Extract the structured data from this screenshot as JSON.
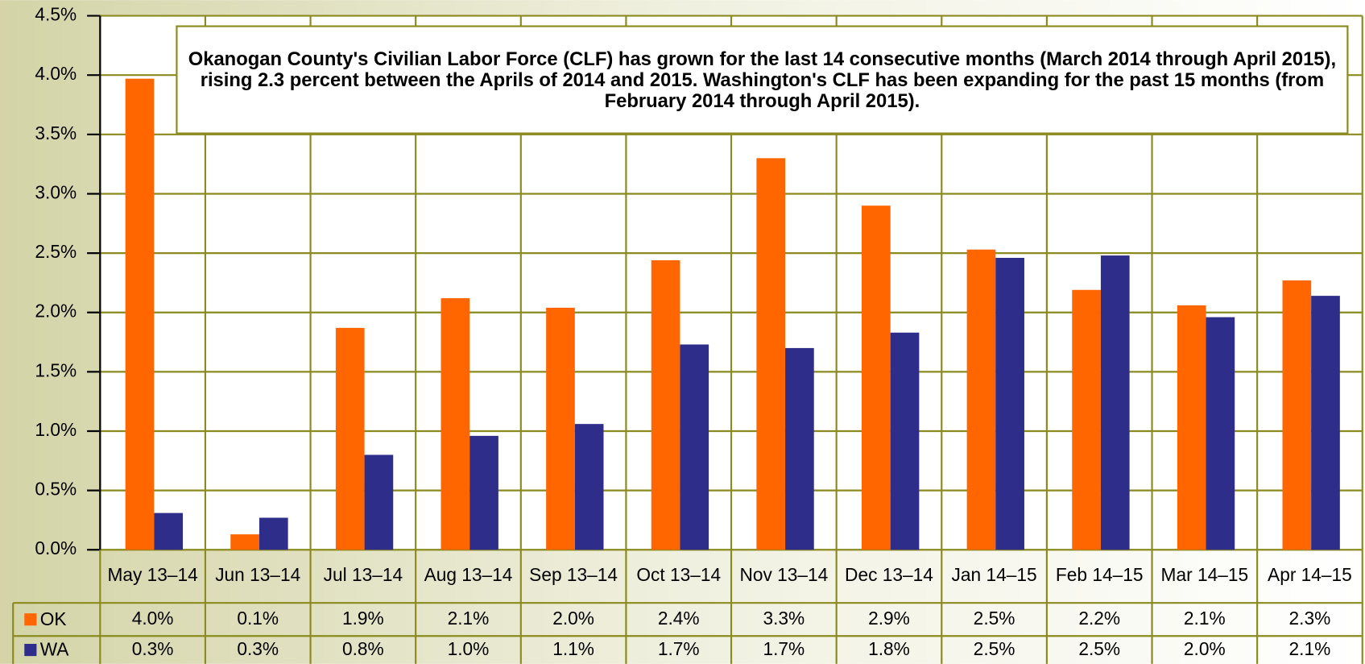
{
  "chart_data": {
    "type": "bar",
    "annotation": "Okanogan County's Civilian Labor Force (CLF) has grown for the last 14 consecutive months (March 2014 through April 2015), rising 2.3 percent between the Aprils of 2014 and 2015. Washington's CLF has been expanding for the past 15 months (from February 2014 through April 2015).",
    "categories": [
      "May 13–14",
      "Jun 13–14",
      "Jul 13–14",
      "Aug 13–14",
      "Sep 13–14",
      "Oct 13–14",
      "Nov 13–14",
      "Dec 13–14",
      "Jan 14–15",
      "Feb 14–15",
      "Mar 14–15",
      "Apr 14–15"
    ],
    "series": [
      {
        "name": "OK",
        "color": "#ff6600",
        "values": [
          3.97,
          0.13,
          1.87,
          2.12,
          2.04,
          2.44,
          3.3,
          2.9,
          2.53,
          2.19,
          2.06,
          2.27
        ],
        "value_labels": [
          "4.0%",
          "0.1%",
          "1.9%",
          "2.1%",
          "2.0%",
          "2.4%",
          "3.3%",
          "2.9%",
          "2.5%",
          "2.2%",
          "2.1%",
          "2.3%"
        ]
      },
      {
        "name": "WA",
        "color": "#2e2e8a",
        "values": [
          0.31,
          0.27,
          0.8,
          0.96,
          1.06,
          1.73,
          1.7,
          1.83,
          2.46,
          2.48,
          1.96,
          2.14
        ],
        "value_labels": [
          "0.3%",
          "0.3%",
          "0.8%",
          "1.0%",
          "1.1%",
          "1.7%",
          "1.7%",
          "1.8%",
          "2.5%",
          "2.5%",
          "2.0%",
          "2.1%"
        ]
      }
    ],
    "ylim": [
      0,
      4.5
    ],
    "yticks": [
      {
        "value": 0,
        "label": "0.0%"
      },
      {
        "value": 0.5,
        "label": "0.5%"
      },
      {
        "value": 1,
        "label": "1.0%"
      },
      {
        "value": 1.5,
        "label": "1.5%"
      },
      {
        "value": 2,
        "label": "2.0%"
      },
      {
        "value": 2.5,
        "label": "2.5%"
      },
      {
        "value": 3,
        "label": "3.0%"
      },
      {
        "value": 3.5,
        "label": "3.5%"
      },
      {
        "value": 4,
        "label": "4.0%"
      },
      {
        "value": 4.5,
        "label": "4.5%"
      }
    ],
    "grid": true
  }
}
